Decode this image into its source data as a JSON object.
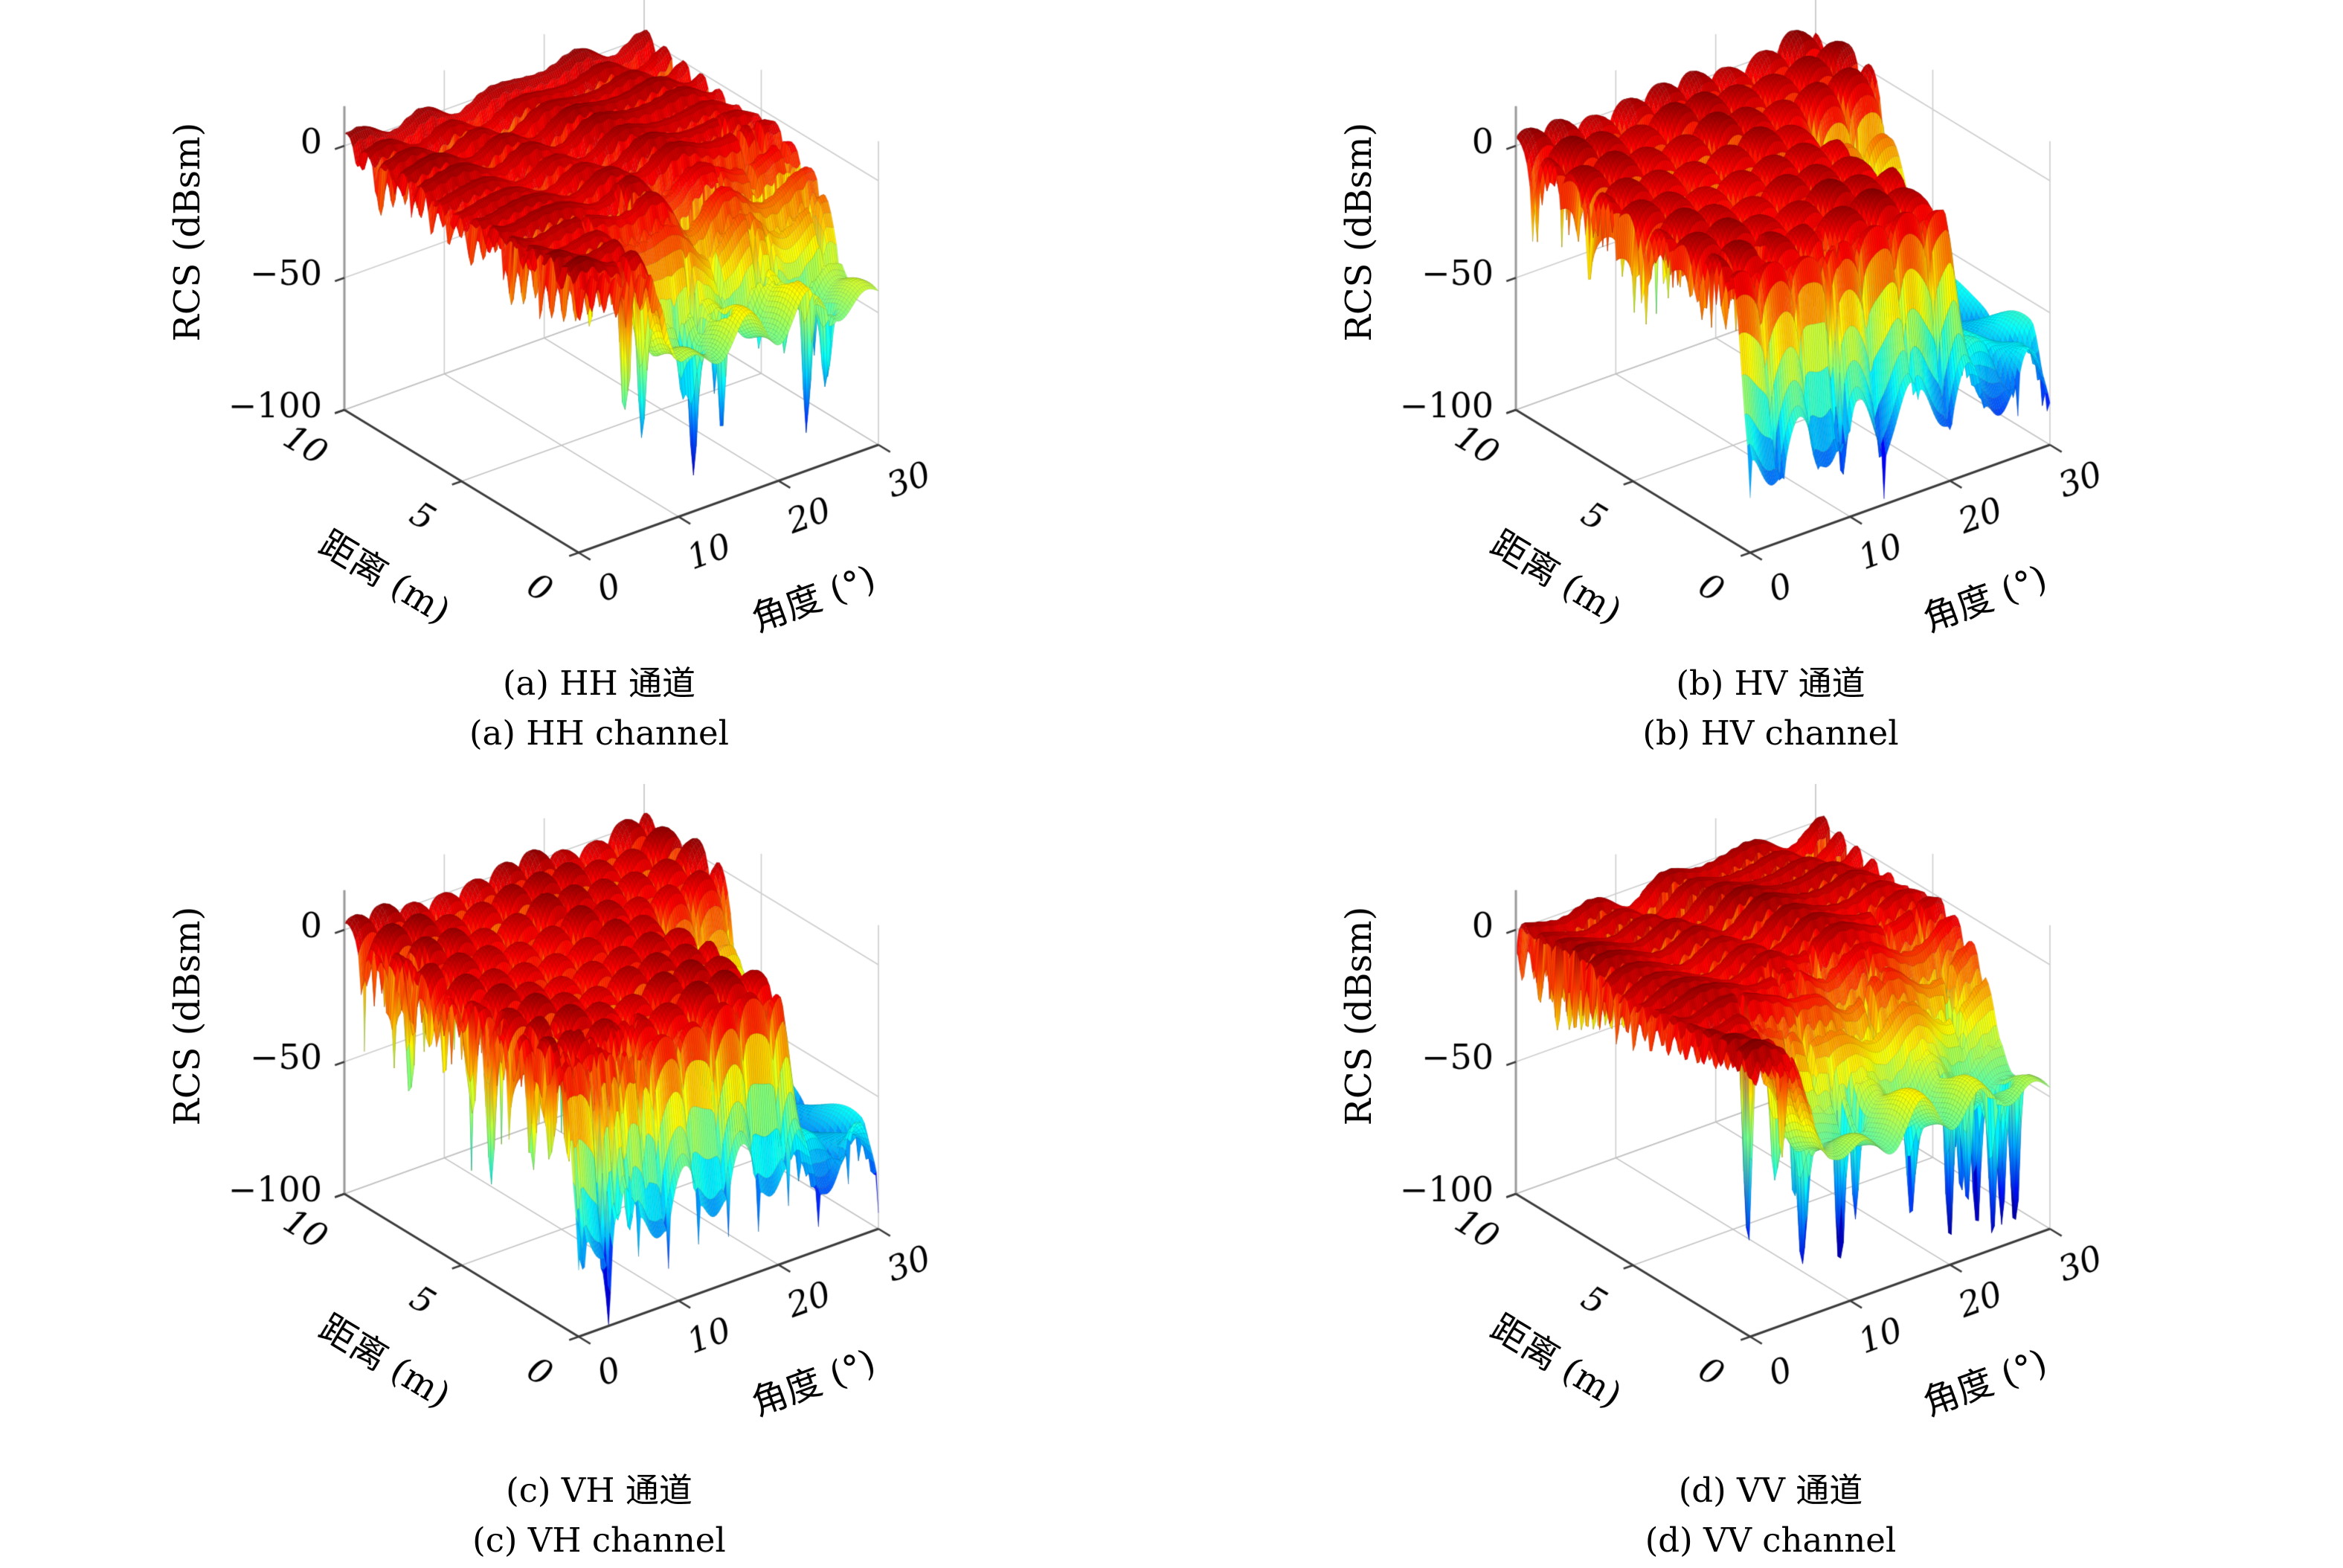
{
  "figure": {
    "background": "#ffffff",
    "text_color": "#000000",
    "grid_color": "#cdcdcd",
    "floor_grid_color": "#c2c2c2",
    "axis_edge_color": "#3c3c3c",
    "z_axis_color": "#9a9a9a"
  },
  "chart_data": {
    "type": "surface",
    "layout": "2x2 subplots",
    "colormap": "jet",
    "caxis": [
      -103,
      8
    ],
    "view": {
      "azimuth_deg": -37.5,
      "elevation_deg": 30
    },
    "axes": {
      "xlabel": "角度 (°)",
      "ylabel": "距离 (m)",
      "zlabel": "RCS (dBsm)",
      "xlim": [
        0,
        30
      ],
      "ylim": [
        0,
        10
      ],
      "zlim": [
        -100,
        15
      ],
      "x_ticks": [
        0,
        10,
        20,
        30
      ],
      "x_tick_labels": [
        "0",
        "10",
        "20",
        "30"
      ],
      "y_ticks": [
        0,
        5,
        10
      ],
      "y_tick_labels": [
        "0",
        "5",
        "10"
      ],
      "z_ticks": [
        0,
        -50,
        -100
      ],
      "z_tick_labels": [
        "0",
        "−50",
        "−100"
      ],
      "grid": true
    },
    "plots": [
      {
        "id": "a",
        "channel": "HH",
        "caption_zh": "(a) HH 通道",
        "caption_en": "(a) HH channel",
        "summary": {
          "top_level_dB": 3,
          "ridge_tops_dB": -8,
          "front_shelf_dB": -50,
          "deep_null_dB": -100
        },
        "surface": {
          "kind": "ridged",
          "seed": 7,
          "base": 1.8,
          "a1": 2.4,
          "f1": 0.85,
          "sk": 0.75,
          "a2": 1.6,
          "f2": 0.33,
          "ridge_period": 0.78,
          "ridge_phase": 0.1,
          "floor": 0.012,
          "slot_scale": 0.62,
          "shelf1": {
            "y": 2.6,
            "ys": 1.5,
            "x": 6.5,
            "xs": 4.0,
            "depth": 46
          },
          "shelf2": {
            "y": 5.0,
            "ys": 2.4,
            "x": 13.0,
            "xs": 5.0,
            "depth": 15
          },
          "spikes": [
            {
              "n": 16,
              "x0": 5,
              "x1": 29.5,
              "y0": 0.1,
              "y1": 3.4,
              "d0": 25,
              "d1": 65
            },
            {
              "n": 6,
              "x0": 18,
              "x1": 30,
              "y0": 3.0,
              "y1": 5.0,
              "d0": 20,
              "d1": 45
            }
          ]
        }
      },
      {
        "id": "b",
        "channel": "HV",
        "caption_zh": "(b) HV 通道",
        "caption_en": "(b) HV channel",
        "summary": {
          "top_level_dB": 3,
          "lobe_crests_dB": 0,
          "curtain_floor_dB": -70,
          "deep_null_dB": -100
        },
        "surface": {
          "kind": "lobed",
          "seed": 5,
          "px": 3.35,
          "py": 1.18,
          "stag": 1.7,
          "fall": 13,
          "base": 3.2,
          "a1": 2.0,
          "f1": 0.5,
          "shelf": {
            "x": 21.0,
            "xs": 2.2,
            "y": 7.6,
            "ys": 2.6,
            "level": -62
          },
          "front": {
            "y": 0.8,
            "strength": 0.92,
            "level": -60,
            "amp": 24
          },
          "spikes": [
            {
              "n": 8,
              "x0": 1,
              "x1": 14,
              "y0": 0.2,
              "y1": 2.0,
              "d0": 15,
              "d1": 40
            }
          ]
        }
      },
      {
        "id": "c",
        "channel": "VH",
        "caption_zh": "(c) VH 通道",
        "caption_en": "(c) VH channel",
        "summary": {
          "top_level_dB": 3,
          "lobe_crests_dB": 0,
          "right_wall_dB": -66,
          "deep_null_dB": -100
        },
        "surface": {
          "kind": "lobed",
          "seed": 13,
          "px": 3.0,
          "py": 1.05,
          "stag": 1.05,
          "fall": 13.5,
          "base": 2.8,
          "a1": 2.4,
          "f1": 0.45,
          "shelf": {
            "x": 21.5,
            "xs": 2.0,
            "y": 6.8,
            "ys": 2.2,
            "level": -66
          },
          "front": {
            "y": 0.7,
            "strength": 0.9,
            "level": -55,
            "amp": 26
          },
          "spikes": [
            {
              "n": 16,
              "x0": 0,
              "x1": 10,
              "y0": 0.0,
              "y1": 2.5,
              "d0": 20,
              "d1": 55
            },
            {
              "n": 8,
              "x0": 0,
              "x1": 2,
              "y0": 2.0,
              "y1": 9.0,
              "d0": 20,
              "d1": 50
            }
          ]
        }
      },
      {
        "id": "d",
        "channel": "VV",
        "caption_zh": "(d) VV 通道",
        "caption_en": "(d) VV channel",
        "summary": {
          "top_level_dB": 4,
          "ridge_tops_dB": -8,
          "front_shelf_dB": -52,
          "deep_null_dB": -100
        },
        "surface": {
          "kind": "ridged",
          "seed": 21,
          "base": 2.0,
          "a1": 2.8,
          "f1": 0.8,
          "sk": 0.9,
          "a2": 1.8,
          "f2": 0.36,
          "ridge_period": 0.71,
          "ridge_phase": 0.05,
          "floor": 0.01,
          "slot_scale": 0.66,
          "shelf1": {
            "y": 3.2,
            "ys": 1.7,
            "x": 4.5,
            "xs": 3.5,
            "depth": 48
          },
          "shelf2": {
            "y": 5.2,
            "ys": 2.4,
            "x": 10.0,
            "xs": 4.5,
            "depth": 18
          },
          "spikes": [
            {
              "n": 22,
              "x0": 4,
              "x1": 29.5,
              "y0": 0.1,
              "y1": 4.2,
              "d0": 30,
              "d1": 80
            },
            {
              "n": 6,
              "x0": 12,
              "x1": 28,
              "y0": 4.0,
              "y1": 6.0,
              "d0": 20,
              "d1": 40
            }
          ]
        }
      }
    ]
  }
}
